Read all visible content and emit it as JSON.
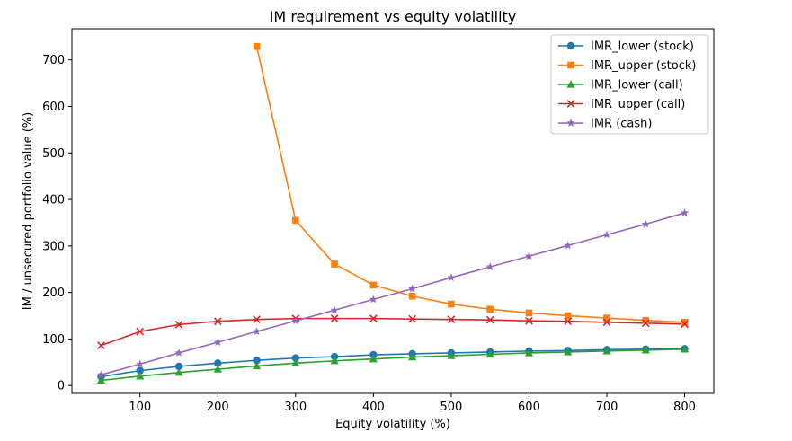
{
  "chart_data": {
    "type": "line",
    "title": "IM requirement vs equity volatility",
    "xlabel": "Equity volatility (%)",
    "ylabel": "IM / unsecured portfolio value (%)",
    "xlim": [
      12.5,
      837.5
    ],
    "ylim": [
      -17,
      767
    ],
    "xticks": [
      100,
      200,
      300,
      400,
      500,
      600,
      700,
      800
    ],
    "yticks": [
      0,
      100,
      200,
      300,
      400,
      500,
      600,
      700
    ],
    "grid": false,
    "legend_position": "top-right",
    "series": [
      {
        "name": "IMR_lower (stock)",
        "color": "#1f77b4",
        "marker": "circle",
        "x": [
          50,
          100,
          150,
          200,
          250,
          300,
          350,
          400,
          450,
          500,
          550,
          600,
          650,
          700,
          750,
          800
        ],
        "y": [
          19,
          32,
          41,
          48,
          54,
          59,
          62,
          66,
          68,
          70,
          72,
          74,
          75,
          77,
          78,
          79
        ]
      },
      {
        "name": "IMR_upper (stock)",
        "color": "#ff7f0e",
        "marker": "square",
        "x": [
          250,
          300,
          350,
          400,
          450,
          500,
          550,
          600,
          650,
          700,
          750,
          800
        ],
        "y": [
          729,
          355,
          261,
          216,
          192,
          175,
          164,
          156,
          150,
          145,
          140,
          136
        ]
      },
      {
        "name": "IMR_lower (call)",
        "color": "#2ca02c",
        "marker": "triangle",
        "x": [
          50,
          100,
          150,
          200,
          250,
          300,
          350,
          400,
          450,
          500,
          550,
          600,
          650,
          700,
          750,
          800
        ],
        "y": [
          11,
          20,
          28,
          35,
          42,
          48,
          53,
          57,
          61,
          64,
          67,
          70,
          72,
          74,
          76,
          78
        ]
      },
      {
        "name": "IMR_upper (call)",
        "color": "#d62728",
        "marker": "x",
        "x": [
          50,
          100,
          150,
          200,
          250,
          300,
          350,
          400,
          450,
          500,
          550,
          600,
          650,
          700,
          750,
          800
        ],
        "y": [
          86,
          116,
          131,
          138,
          142,
          144,
          144,
          144,
          143,
          142,
          141,
          139,
          138,
          136,
          134,
          132
        ]
      },
      {
        "name": "IMR (cash)",
        "color": "#9467bd",
        "marker": "star",
        "x": [
          50,
          100,
          150,
          200,
          250,
          300,
          350,
          400,
          450,
          500,
          550,
          600,
          650,
          700,
          750,
          800
        ],
        "y": [
          23,
          46,
          70,
          93,
          116,
          139,
          162,
          185,
          208,
          232,
          255,
          278,
          301,
          324,
          347,
          371
        ]
      }
    ]
  }
}
